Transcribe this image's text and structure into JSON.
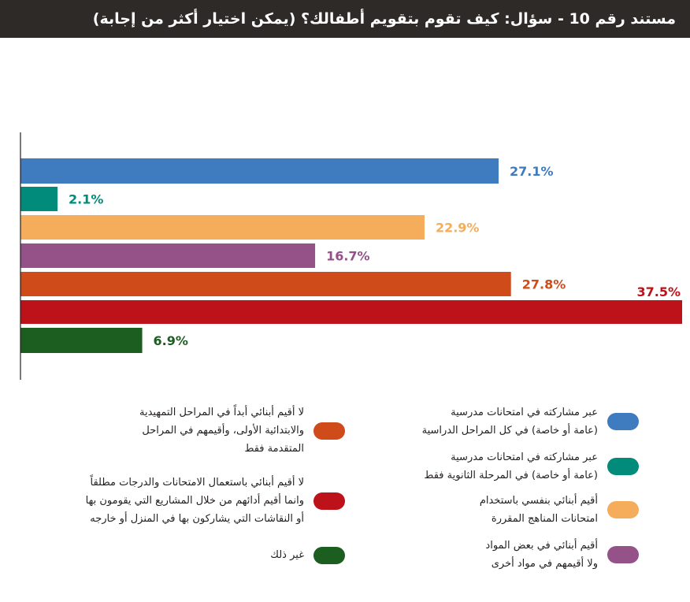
{
  "header": {
    "title": "مستند رقم 10 - سؤال: كيف تقوم بتقويم أطفالك؟ (يمكن اختيار أكثر من إجابة)"
  },
  "chart_data": {
    "type": "bar",
    "orientation": "horizontal",
    "xlim": [
      0,
      37.5
    ],
    "series": [
      {
        "label": "عبر مشاركته في امتحانات مدرسية\n(عامة أو خاصة) في كل المراحل الدراسية",
        "value": 27.1,
        "value_label": "27.1%",
        "color": "#3e7bbf"
      },
      {
        "label": "عبر مشاركته في امتحانات مدرسية\n(عامة أو خاصة) في المرحلة الثانوية فقط",
        "value": 2.1,
        "value_label": "2.1%",
        "color": "#008b7a"
      },
      {
        "label": "أقيم أبنائي بنفسي باستخدام\nامتحانات المناهج المقررة",
        "value": 22.9,
        "value_label": "22.9%",
        "color": "#f5ad5c"
      },
      {
        "label": "أقيم أبنائي في بعض المواد\nولا أقيمهم في مواد أخرى",
        "value": 16.7,
        "value_label": "16.7%",
        "color": "#945289"
      },
      {
        "label": "لا أقيم أبنائي أبداً في المراحل التمهيدية\nوالابتدائية الأولى، وأقيمهم في المراحل\nالمتقدمة فقط",
        "value": 27.8,
        "value_label": "27.8%",
        "color": "#d04b1a"
      },
      {
        "label": "لا أقيم أبنائي باستعمال الامتحانات والدرجات مطلقاً\nوانما أقيم أدائهم من خلال المشاريع التي يقومون بها\nأو النقاشات التي يشاركون بها في المنزل أو خارجه",
        "value": 37.5,
        "value_label": "37.5%",
        "color": "#bd1219"
      },
      {
        "label": "غير ذلك",
        "value": 6.9,
        "value_label": "6.9%",
        "color": "#1b5e20"
      }
    ]
  }
}
